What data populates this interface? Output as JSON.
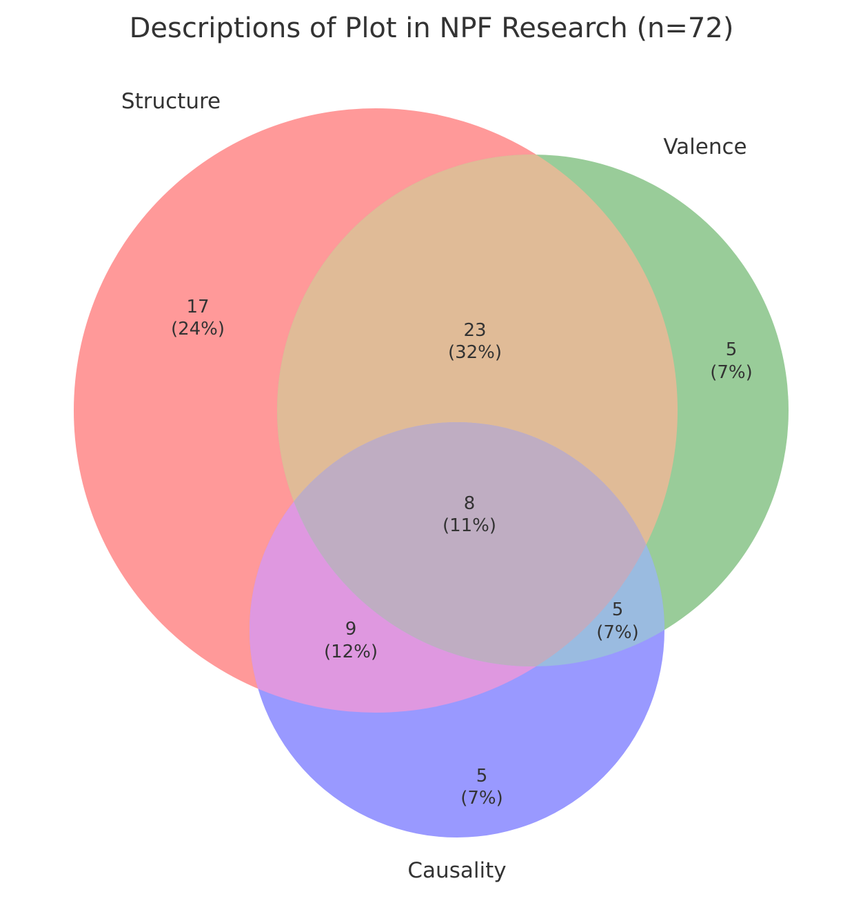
{
  "title": "Descriptions of Plot in NPF Research (n=72)",
  "sets": [
    {
      "id": "structure",
      "label": "Structure",
      "color": "#ff9999"
    },
    {
      "id": "valence",
      "label": "Valence",
      "color": "#99cc99"
    },
    {
      "id": "causality",
      "label": "Causality",
      "color": "#9999ff"
    }
  ],
  "regions": [
    {
      "id": "structure-only",
      "sets": [
        "Structure"
      ],
      "count": "17",
      "percent": "(24%)"
    },
    {
      "id": "valence-only",
      "sets": [
        "Valence"
      ],
      "count": "5",
      "percent": "(7%)"
    },
    {
      "id": "causality-only",
      "sets": [
        "Causality"
      ],
      "count": "5",
      "percent": "(7%)"
    },
    {
      "id": "structure-valence",
      "sets": [
        "Structure",
        "Valence"
      ],
      "count": "23",
      "percent": "(32%)"
    },
    {
      "id": "structure-causality",
      "sets": [
        "Structure",
        "Causality"
      ],
      "count": "9",
      "percent": "(12%)"
    },
    {
      "id": "valence-causality",
      "sets": [
        "Valence",
        "Causality"
      ],
      "count": "5",
      "percent": "(7%)"
    },
    {
      "id": "all-three",
      "sets": [
        "Structure",
        "Valence",
        "Causality"
      ],
      "count": "8",
      "percent": "(11%)"
    }
  ],
  "region_colors": {
    "structure_valence": "#e0bb97",
    "structure_causality": "#df98e0",
    "valence_causality": "#9abbe0",
    "all_three": "#bfadc2"
  }
}
